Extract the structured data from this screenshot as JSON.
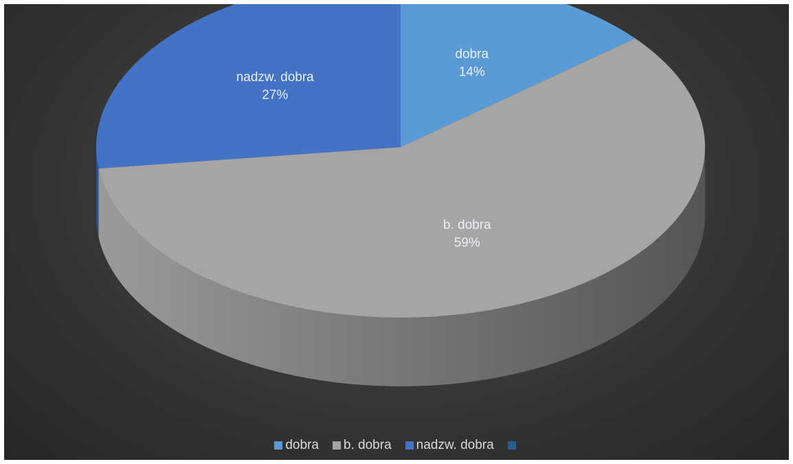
{
  "chart_data": {
    "type": "pie",
    "title": "",
    "slices": [
      {
        "label": "dobra",
        "value": 14,
        "display": "14%",
        "color": "#5b9bd5"
      },
      {
        "label": "b. dobra",
        "value": 59,
        "display": "59%",
        "color": "#a5a5a5"
      },
      {
        "label": "nadzw. dobra",
        "value": 27,
        "display": "27%",
        "color": "#4472c4"
      }
    ],
    "legend": {
      "placement": "bottom",
      "entries": [
        {
          "label": "dobra",
          "color": "#5b9bd5"
        },
        {
          "label": "b. dobra",
          "color": "#a5a5a5"
        },
        {
          "label": "nadzw. dobra",
          "color": "#4472c4"
        },
        {
          "label": "",
          "color": "#255e91"
        }
      ]
    },
    "style": {
      "3d": true,
      "background": "#3a3a3a"
    }
  }
}
